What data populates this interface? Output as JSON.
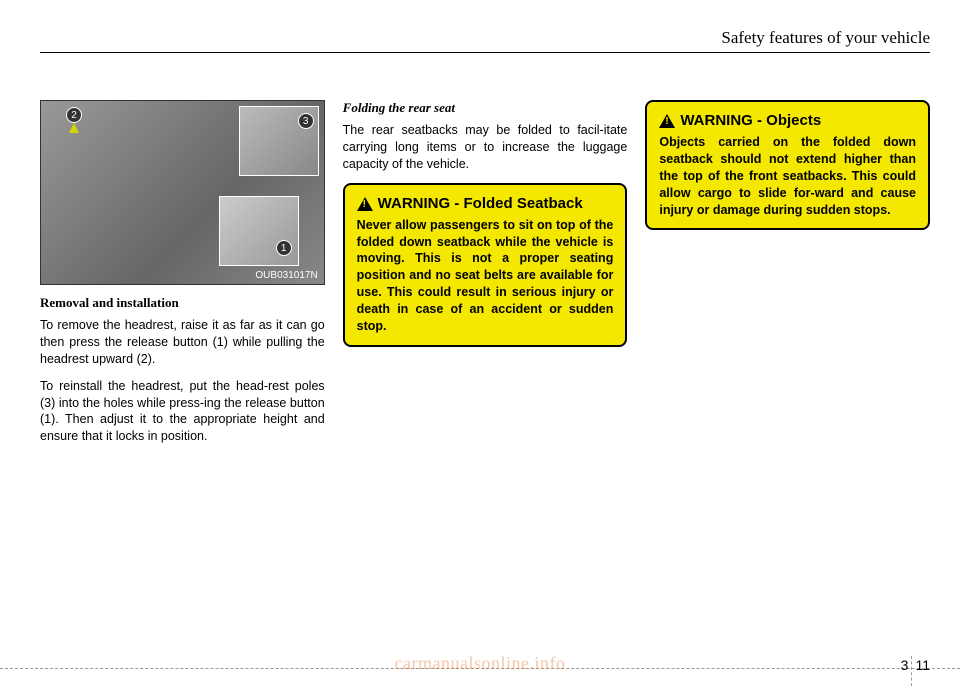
{
  "header": {
    "section_title": "Safety features of your vehicle"
  },
  "col1": {
    "figure_label": "OUB031017N",
    "callouts": {
      "c1": "1",
      "c2": "2",
      "c3": "3"
    },
    "heading": "Removal and installation",
    "para1": "To remove the headrest, raise it as far as it can go then press the release button (1) while pulling the headrest upward (2).",
    "para2": "To reinstall the headrest, put the head-rest poles (3) into the holes while press-ing the release button (1). Then adjust it to the appropriate height and ensure that it locks in position."
  },
  "col2": {
    "heading": "Folding the rear seat",
    "para1": "The rear seatbacks may be folded to facil-itate carrying long items or to increase the luggage capacity of the vehicle.",
    "warning1": {
      "title": "WARNING",
      "subtitle": "- Folded Seatback",
      "body": "Never allow passengers to sit on top of the folded down seatback while the vehicle is moving. This is not a proper seating position and no seat belts are available for use. This could result in serious injury or death in case of an accident or sudden stop."
    }
  },
  "col3": {
    "warning1": {
      "title": "WARNING",
      "subtitle": "- Objects",
      "body": "Objects carried on the folded down seatback should not extend higher than the top of the front seatbacks. This could allow cargo to slide for-ward and cause injury or damage during sudden stops."
    }
  },
  "footer": {
    "page_left": "3",
    "page_right": "11",
    "watermark": "carmanualsonline.info"
  }
}
